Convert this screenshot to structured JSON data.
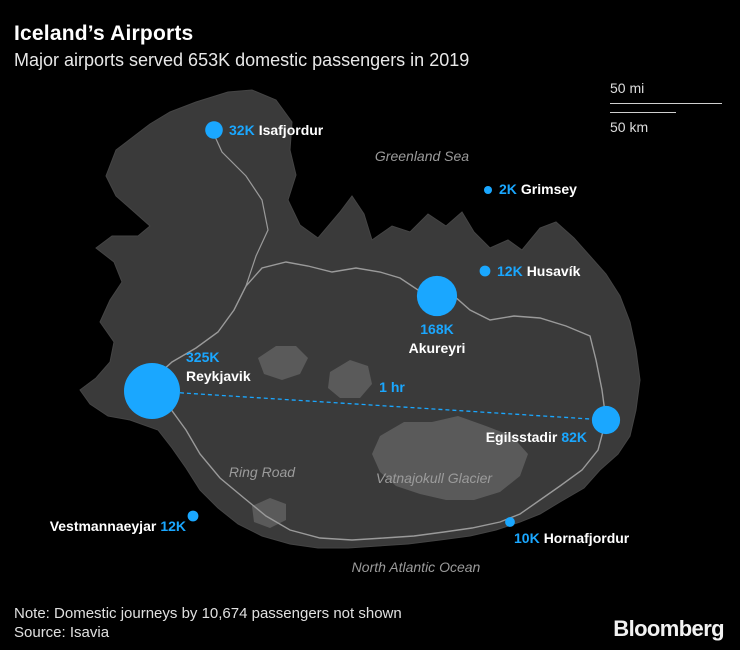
{
  "title": "Iceland’s Airports",
  "subtitle": "Major airports served 653K domestic passengers in 2019",
  "scale": {
    "miles": "50 mi",
    "km": "50 km"
  },
  "geo_labels": {
    "greenland_sea": "Greenland Sea",
    "ring_road": "Ring Road",
    "glacier": "Vatnajokull Glacier",
    "ocean": "North Atlantic Ocean"
  },
  "route": {
    "label": "1 hr"
  },
  "airports": [
    {
      "name": "Isafjordur",
      "passengers": 32,
      "value_label": "32K"
    },
    {
      "name": "Grimsey",
      "passengers": 2,
      "value_label": "2K"
    },
    {
      "name": "Husavík",
      "passengers": 12,
      "value_label": "12K"
    },
    {
      "name": "Akureyri",
      "passengers": 168,
      "value_label": "168K"
    },
    {
      "name": "Reykjavik",
      "passengers": 325,
      "value_label": "325K"
    },
    {
      "name": "Egilsstadir",
      "passengers": 82,
      "value_label": "82K"
    },
    {
      "name": "Vestmannaeyjar",
      "passengers": 12,
      "value_label": "12K"
    },
    {
      "name": "Hornafjordur",
      "passengers": 10,
      "value_label": "10K"
    }
  ],
  "colors": {
    "accent": "#1aa7ff",
    "land": "#3a3a3a",
    "glacier": "#5a5a5a",
    "road": "#9a9a9a"
  },
  "note": "Note: Domestic journeys by 10,674 passengers not shown",
  "source": "Source: Isavia",
  "brand": "Bloomberg"
}
